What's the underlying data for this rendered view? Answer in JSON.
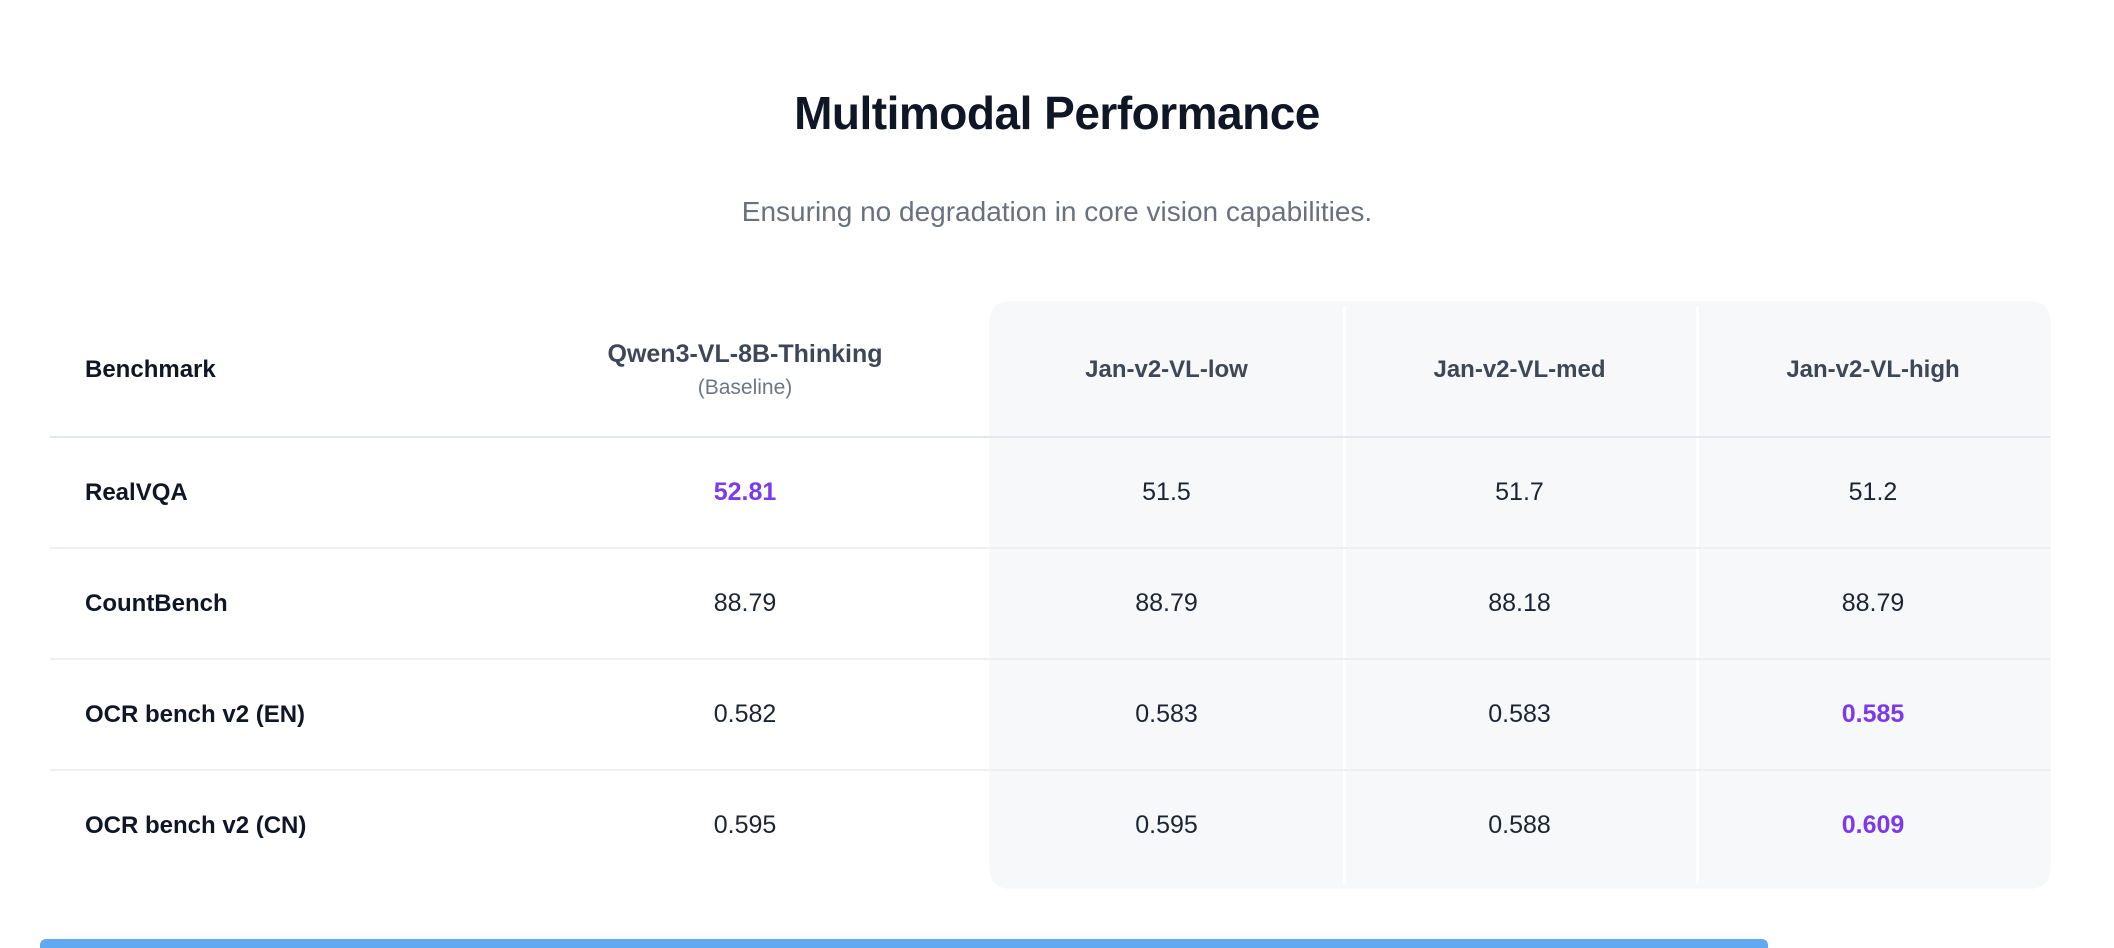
{
  "page": {
    "title": "Multimodal Performance",
    "subtitle": "Ensuring no degradation in core vision capabilities."
  },
  "table": {
    "benchmark_header": "Benchmark",
    "baseline_header": {
      "name": "Qwen3-VL-8B-Thinking",
      "note": "(Baseline)"
    },
    "model_headers": [
      "Jan-v2-VL-low",
      "Jan-v2-VL-med",
      "Jan-v2-VL-high"
    ],
    "rows": [
      {
        "benchmark": "RealVQA",
        "baseline": "52.81",
        "low": "51.5",
        "med": "51.7",
        "high": "51.2",
        "best": "baseline"
      },
      {
        "benchmark": "CountBench",
        "baseline": "88.79",
        "low": "88.79",
        "med": "88.18",
        "high": "88.79",
        "best": "none"
      },
      {
        "benchmark": "OCR bench v2 (EN)",
        "baseline": "0.582",
        "low": "0.583",
        "med": "0.583",
        "high": "0.585",
        "best": "high"
      },
      {
        "benchmark": "OCR bench v2 (CN)",
        "baseline": "0.595",
        "low": "0.595",
        "med": "0.588",
        "high": "0.609",
        "best": "high"
      }
    ]
  },
  "colors": {
    "accent_purple": "#7c3aed",
    "card_background": "#f7f8fa",
    "bottom_bar_blue": "#61a9f0"
  }
}
